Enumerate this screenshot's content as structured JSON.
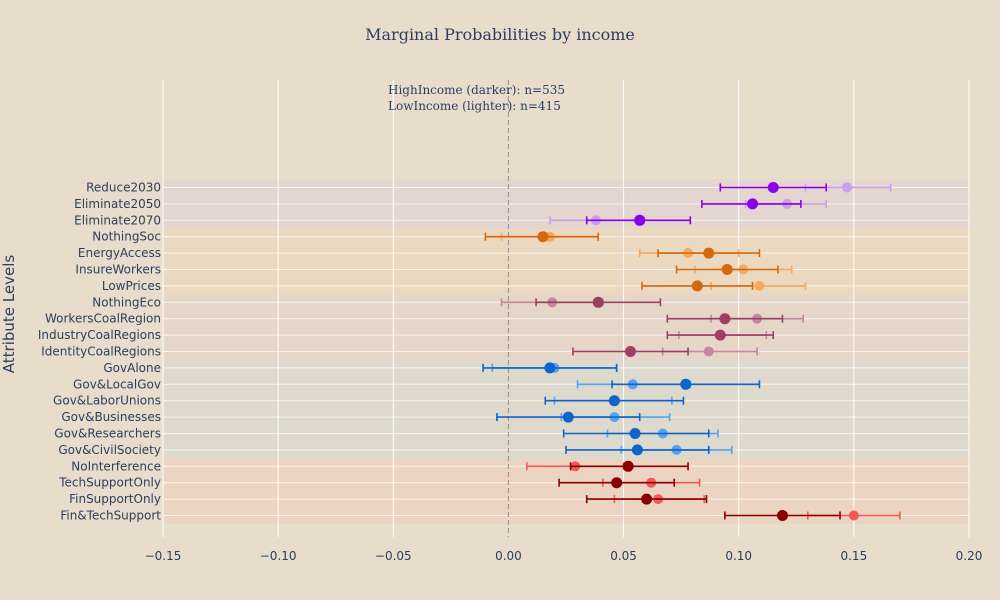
{
  "chart_data": {
    "type": "scatter",
    "title": "Marginal Probabilities by income",
    "ylabel": "Attribute Levels",
    "xlabel": "",
    "xlim": [
      -0.15,
      0.2
    ],
    "xticks": [
      -0.15,
      -0.1,
      -0.05,
      0.0,
      0.05,
      0.1,
      0.15,
      0.2
    ],
    "xtick_labels": [
      "−0.15",
      "−0.10",
      "−0.05",
      "0.00",
      "0.05",
      "0.10",
      "0.15",
      "0.20"
    ],
    "annotation_lines": [
      "HighIncome (darker): n=535",
      "LowIncome (lighter): n=415"
    ],
    "reference_line_x": 0,
    "categories": [
      "Reduce2030",
      "Eliminate2050",
      "Eliminate2070",
      "NothingSoc",
      "EnergyAccess",
      "InsureWorkers",
      "LowPrices",
      "NothingEco",
      "WorkersCoalRegion",
      "IndustryCoalRegions",
      "IdentityCoalRegions",
      "GovAlone",
      "Gov&LocalGov",
      "Gov&LaborUnions",
      "Gov&Businesses",
      "Gov&Researchers",
      "Gov&CivilSociety",
      "NoInterference",
      "TechSupportOnly",
      "FinSupportOnly",
      "Fin&TechSupport"
    ],
    "groups": [
      {
        "start": 0,
        "end": 2,
        "band": "#e4d6cf",
        "dark": "#8800ee",
        "light": "#c79ff0"
      },
      {
        "start": 3,
        "end": 6,
        "band": "#ebd8c0",
        "dark": "#d4680e",
        "light": "#f6a85c"
      },
      {
        "start": 7,
        "end": 10,
        "band": "#e5d6c7",
        "dark": "#9c3f63",
        "light": "#c486a1"
      },
      {
        "start": 11,
        "end": 16,
        "band": "#ddd9cc",
        "dark": "#0f64c8",
        "light": "#55a2f2"
      },
      {
        "start": 17,
        "end": 20,
        "band": "#ebd4c1",
        "dark": "#8a0000",
        "light": "#f25a5a"
      }
    ],
    "series": [
      {
        "name": "HighIncome (darker)",
        "values": [
          0.115,
          0.106,
          0.057,
          0.015,
          0.087,
          0.095,
          0.082,
          0.039,
          0.094,
          0.092,
          0.053,
          0.018,
          0.077,
          0.046,
          0.026,
          0.055,
          0.056,
          0.052,
          0.047,
          0.06,
          0.119
        ],
        "ci_low": [
          0.092,
          0.084,
          0.034,
          -0.01,
          0.065,
          0.073,
          0.058,
          0.012,
          0.069,
          0.069,
          0.028,
          -0.011,
          0.045,
          0.016,
          -0.005,
          0.024,
          0.025,
          0.027,
          0.022,
          0.034,
          0.094
        ],
        "ci_high": [
          0.138,
          0.127,
          0.079,
          0.039,
          0.109,
          0.117,
          0.106,
          0.066,
          0.119,
          0.115,
          0.078,
          0.047,
          0.109,
          0.076,
          0.057,
          0.087,
          0.087,
          0.078,
          0.072,
          0.086,
          0.144
        ]
      },
      {
        "name": "LowIncome (lighter)",
        "values": [
          0.147,
          0.121,
          0.038,
          0.018,
          0.078,
          0.102,
          0.109,
          0.019,
          0.108,
          0.092,
          0.087,
          0.02,
          0.054,
          0.046,
          0.046,
          0.067,
          0.073,
          0.029,
          0.062,
          0.065,
          0.15
        ],
        "ci_low": [
          0.129,
          0.103,
          0.018,
          -0.003,
          0.057,
          0.081,
          0.088,
          -0.003,
          0.088,
          0.074,
          0.067,
          -0.007,
          0.03,
          0.02,
          0.023,
          0.043,
          0.049,
          0.008,
          0.041,
          0.046,
          0.13
        ],
        "ci_high": [
          0.166,
          0.138,
          0.059,
          0.039,
          0.1,
          0.123,
          0.129,
          0.041,
          0.128,
          0.112,
          0.108,
          0.047,
          0.079,
          0.071,
          0.07,
          0.091,
          0.097,
          0.05,
          0.083,
          0.085,
          0.17
        ]
      }
    ]
  }
}
